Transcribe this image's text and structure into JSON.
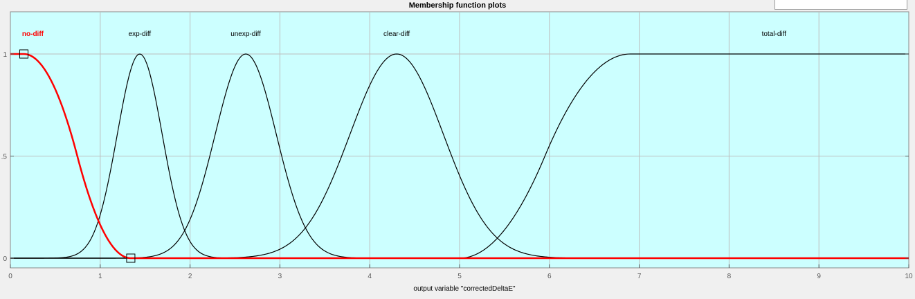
{
  "window": {
    "title": "Membership function plots"
  },
  "colors": {
    "plot_background": "#ccffff",
    "selected": "#ff0000",
    "curve": "#000000",
    "grid": "#bdbdbd"
  },
  "chart_data": {
    "type": "line",
    "title": "Membership function plots",
    "xlabel": "output variable \"correctedDeltaE\"",
    "ylabel": "",
    "xlim": [
      0,
      10
    ],
    "ylim": [
      0,
      1.1
    ],
    "xticks": [
      "0",
      "1",
      "2",
      "3",
      "4",
      "5",
      "6",
      "7",
      "8",
      "9",
      "10"
    ],
    "yticks": [
      {
        "value": 0,
        "label": "0"
      },
      {
        "value": 0.5,
        "label": ".5"
      },
      {
        "value": 1,
        "label": "1"
      }
    ],
    "grid": true,
    "series": [
      {
        "name": "no-diff",
        "shape": "zmf",
        "params": [
          0.15,
          1.34
        ],
        "selected": true,
        "label_x": 0.25,
        "handles": [
          [
            0.15,
            1
          ],
          [
            1.34,
            0
          ]
        ]
      },
      {
        "name": "exp-diff",
        "shape": "gaussmf",
        "params": [
          0.25,
          1.44
        ],
        "selected": false,
        "label_x": 1.44
      },
      {
        "name": "unexp-diff",
        "shape": "gaussmf",
        "params": [
          0.34,
          2.62
        ],
        "selected": false,
        "label_x": 2.62
      },
      {
        "name": "clear-diff",
        "shape": "gaussmf",
        "params": [
          0.52,
          4.3
        ],
        "selected": false,
        "label_x": 4.3
      },
      {
        "name": "total-diff",
        "shape": "smf",
        "params": [
          5.0,
          6.9
        ],
        "selected": false,
        "label_x": 8.5
      }
    ]
  }
}
